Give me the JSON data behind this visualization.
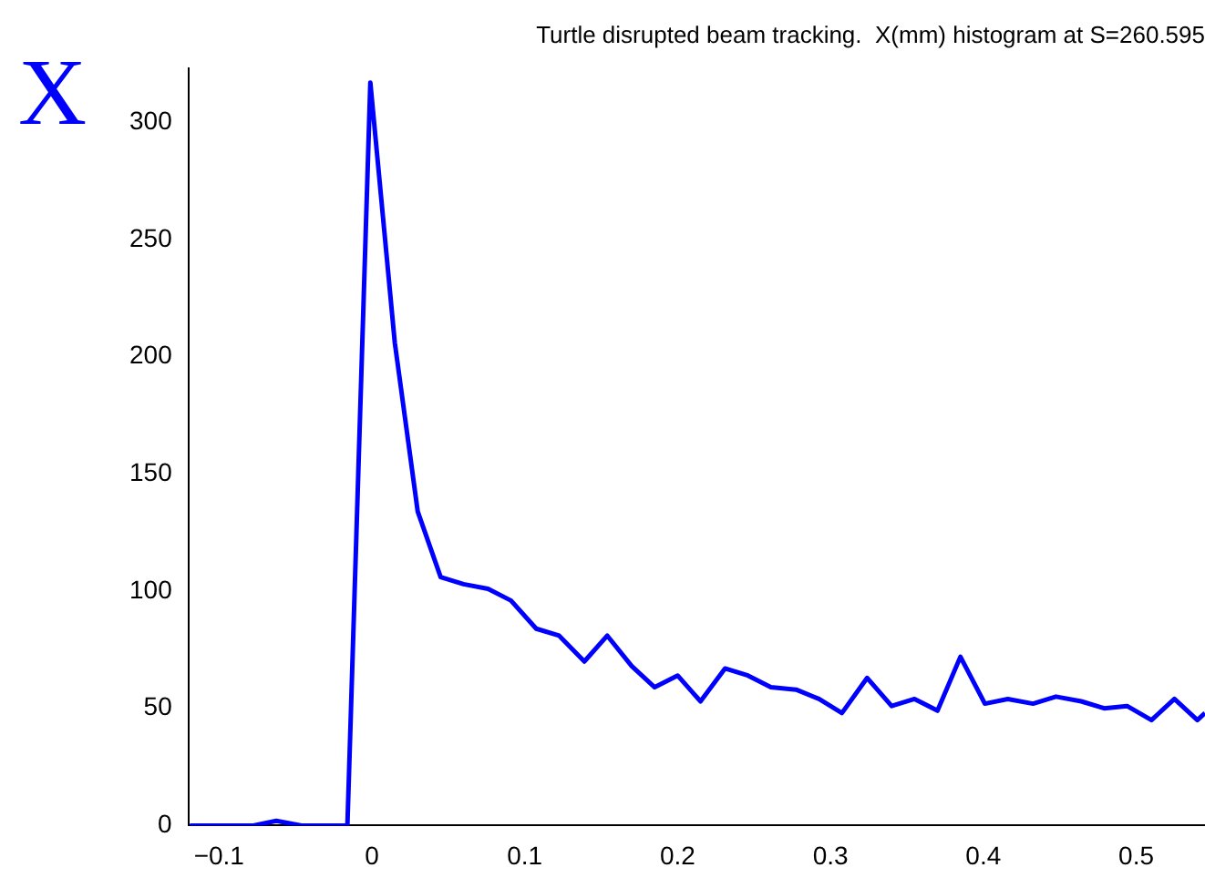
{
  "chart_data": {
    "type": "line",
    "title": "Turtle disrupted beam tracking.  X(mm) histogram at S=260.595",
    "ylabel": "X",
    "series": [
      {
        "color": "#0000ff",
        "x": [
          -0.119,
          -0.0775,
          -0.0625,
          -0.046,
          -0.016,
          -0.001,
          0.015,
          0.03,
          0.045,
          0.06,
          0.076,
          0.091,
          0.1075,
          0.1225,
          0.139,
          0.154,
          0.17,
          0.185,
          0.2,
          0.215,
          0.231,
          0.246,
          0.261,
          0.2775,
          0.2925,
          0.3075,
          0.324,
          0.34,
          0.355,
          0.37,
          0.385,
          0.401,
          0.416,
          0.4325,
          0.4475,
          0.464,
          0.479,
          0.494,
          0.51,
          0.525,
          0.54,
          0.545
        ],
        "values": [
          0,
          0,
          2,
          0,
          0,
          317,
          206,
          134,
          106,
          103,
          101,
          96,
          84,
          81,
          70,
          81,
          68,
          59,
          64,
          53,
          67,
          64,
          59,
          58,
          54,
          48,
          63,
          51,
          54,
          49,
          72,
          52,
          54,
          52,
          55,
          53,
          50,
          51,
          45,
          54,
          45,
          48
        ]
      }
    ],
    "xlim": [
      -0.12,
      0.545
    ],
    "xticks": [
      {
        "value": -0.1,
        "label": "−0.1"
      },
      0,
      0.1,
      0.2,
      0.3,
      0.4,
      0.5
    ],
    "ylim": [
      0,
      323
    ],
    "yticks": [
      0,
      50,
      100,
      150,
      200,
      250,
      300
    ],
    "grid": false,
    "legend": false,
    "marker": "none",
    "line_style": "solid"
  }
}
